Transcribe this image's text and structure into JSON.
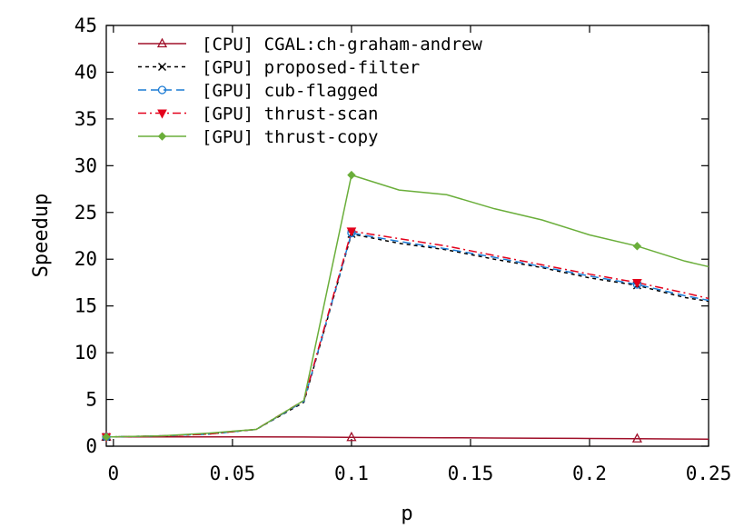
{
  "chart_data": {
    "type": "line",
    "xlabel": "p",
    "ylabel": "Speedup",
    "xlim": [
      -0.003,
      0.25
    ],
    "ylim": [
      0,
      45
    ],
    "xticks": [
      0,
      0.05,
      0.1,
      0.15,
      0.2,
      0.25
    ],
    "xtick_labels": [
      "0",
      "0.05",
      "0.1",
      "0.15",
      "0.2",
      "0.25"
    ],
    "yticks": [
      0,
      5,
      10,
      15,
      20,
      25,
      30,
      35,
      40,
      45
    ],
    "ytick_labels": [
      "0",
      "5",
      "10",
      "15",
      "20",
      "25",
      "30",
      "35",
      "40",
      "45"
    ],
    "grid": false,
    "legend_position": "top-left",
    "series": [
      {
        "name": "[CPU] CGAL:ch-graham-andrew",
        "color": "#a0102a",
        "dash": "solid",
        "marker": "triangle-open",
        "marker_every": 6,
        "x": [
          -0.003,
          0.0,
          0.02,
          0.04,
          0.06,
          0.08,
          0.1,
          0.12,
          0.14,
          0.16,
          0.18,
          0.2,
          0.22,
          0.24,
          0.25
        ],
        "y": [
          1.0,
          1.0,
          1.0,
          1.0,
          1.0,
          0.98,
          0.95,
          0.92,
          0.9,
          0.88,
          0.85,
          0.83,
          0.8,
          0.77,
          0.75
        ]
      },
      {
        "name": "[GPU] proposed-filter",
        "color": "#000000",
        "dash": "dotted",
        "marker": "x",
        "marker_every": 6,
        "x": [
          -0.003,
          0.0,
          0.02,
          0.04,
          0.06,
          0.08,
          0.1,
          0.12,
          0.14,
          0.16,
          0.18,
          0.2,
          0.22,
          0.24,
          0.25
        ],
        "y": [
          1.0,
          1.0,
          1.1,
          1.3,
          1.8,
          4.7,
          22.7,
          21.7,
          21.0,
          20.0,
          19.1,
          18.0,
          17.2,
          15.9,
          15.5
        ]
      },
      {
        "name": "[GPU] cub-flagged",
        "color": "#1c7bd4",
        "dash": "dashed",
        "marker": "circle-open",
        "marker_every": 6,
        "x": [
          -0.003,
          0.0,
          0.02,
          0.04,
          0.06,
          0.08,
          0.1,
          0.12,
          0.14,
          0.16,
          0.18,
          0.2,
          0.22,
          0.24,
          0.25
        ],
        "y": [
          1.0,
          1.0,
          1.1,
          1.3,
          1.8,
          4.8,
          22.8,
          21.9,
          21.1,
          20.2,
          19.2,
          18.2,
          17.3,
          16.1,
          15.6
        ]
      },
      {
        "name": "[GPU] thrust-scan",
        "color": "#e3001b",
        "dash": "dashdot",
        "marker": "triangle-down-filled",
        "marker_every": 6,
        "x": [
          -0.003,
          0.0,
          0.02,
          0.04,
          0.06,
          0.08,
          0.1,
          0.12,
          0.14,
          0.16,
          0.18,
          0.2,
          0.22,
          0.24,
          0.25
        ],
        "y": [
          1.0,
          1.0,
          1.1,
          1.3,
          1.8,
          4.9,
          23.0,
          22.2,
          21.4,
          20.4,
          19.4,
          18.4,
          17.5,
          16.4,
          15.8
        ]
      },
      {
        "name": "[GPU] thrust-copy",
        "color": "#6aae3a",
        "dash": "solid",
        "marker": "diamond-filled",
        "marker_every": 6,
        "x": [
          -0.003,
          0.0,
          0.02,
          0.04,
          0.06,
          0.08,
          0.1,
          0.12,
          0.14,
          0.16,
          0.18,
          0.2,
          0.22,
          0.24,
          0.25
        ],
        "y": [
          1.0,
          1.0,
          1.1,
          1.4,
          1.8,
          4.9,
          29.0,
          27.4,
          26.9,
          25.4,
          24.2,
          22.6,
          21.4,
          19.8,
          19.2
        ]
      }
    ]
  }
}
